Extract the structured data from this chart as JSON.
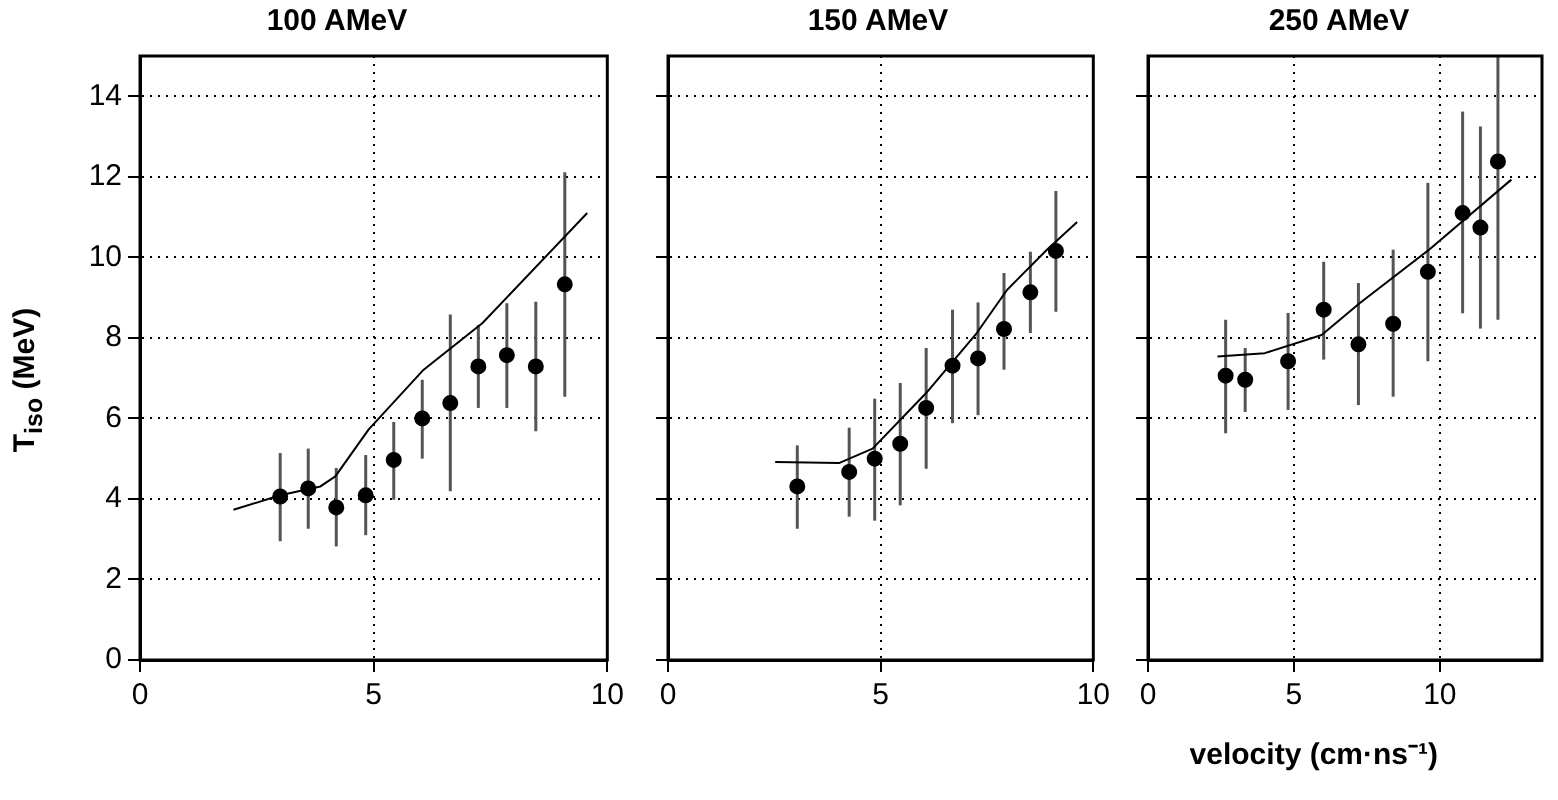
{
  "chart_data": [
    {
      "type": "scatter",
      "title": "100 AMeV",
      "ylabel": "T$_{iso}$ (MeV)",
      "xlim": [
        0,
        10
      ],
      "xticks": [
        0,
        5,
        10
      ],
      "ylim": [
        0,
        15
      ],
      "yticks": [
        0,
        2,
        4,
        6,
        8,
        10,
        12,
        14
      ],
      "grid": true,
      "series": [
        {
          "type": "scatter",
          "color": "#000000",
          "marker": "circle",
          "x": [
            3.0,
            3.6,
            4.2,
            4.83,
            5.43,
            6.04,
            6.64,
            7.24,
            7.85,
            8.47,
            9.09
          ],
          "values": [
            4.06,
            4.26,
            3.79,
            4.09,
            4.97,
            6.0,
            6.38,
            7.29,
            7.57,
            7.29,
            9.33
          ],
          "errors": [
            [
              2.95,
              5.14
            ],
            [
              3.26,
              5.25
            ],
            [
              2.82,
              4.77
            ],
            [
              3.1,
              5.09
            ],
            [
              3.98,
              5.91
            ],
            [
              5.0,
              6.96
            ],
            [
              4.19,
              8.58
            ],
            [
              6.26,
              8.32
            ],
            [
              6.26,
              8.86
            ],
            [
              5.68,
              8.9
            ],
            [
              6.54,
              12.11
            ]
          ]
        },
        {
          "type": "line",
          "color": "#000000",
          "marker": "none",
          "x": [
            2.0,
            3.0,
            3.86,
            4.18,
            4.89,
            6.07,
            7.33,
            9.57
          ],
          "values": [
            3.73,
            4.09,
            4.31,
            4.56,
            5.72,
            7.21,
            8.37,
            11.1
          ]
        }
      ]
    },
    {
      "type": "scatter",
      "title": "150 AMeV",
      "xlim": [
        0,
        10
      ],
      "xticks": [
        0,
        5,
        10
      ],
      "ylim": [
        0,
        15
      ],
      "yticks": [
        0,
        2,
        4,
        6,
        8,
        10,
        12,
        14
      ],
      "grid": true,
      "tick_labels": "x",
      "series": [
        {
          "type": "scatter",
          "color": "#000000",
          "marker": "circle",
          "x": [
            3.04,
            4.26,
            4.86,
            5.46,
            6.07,
            6.69,
            7.29,
            7.9,
            8.52,
            9.12
          ],
          "values": [
            4.31,
            4.67,
            5.0,
            5.37,
            6.26,
            7.31,
            7.49,
            8.22,
            9.13,
            10.16
          ],
          "errors": [
            [
              3.26,
              5.33
            ],
            [
              3.56,
              5.77
            ],
            [
              3.46,
              6.49
            ],
            [
              3.84,
              6.88
            ],
            [
              4.75,
              7.75
            ],
            [
              5.88,
              8.7
            ],
            [
              6.08,
              8.88
            ],
            [
              7.21,
              9.61
            ],
            [
              8.12,
              10.14
            ],
            [
              8.65,
              11.65
            ]
          ]
        },
        {
          "type": "line",
          "color": "#000000",
          "marker": "none",
          "x": [
            2.52,
            4.02,
            4.81,
            6.07,
            7.26,
            7.97,
            8.91,
            9.62
          ],
          "values": [
            4.92,
            4.89,
            5.25,
            6.63,
            8.12,
            9.19,
            10.19,
            10.88
          ]
        }
      ]
    },
    {
      "type": "scatter",
      "title": "250 AMeV",
      "xlabel": "velocity (cm·ns⁻¹)",
      "xlim": [
        0,
        13.5
      ],
      "xticks": [
        0,
        5,
        10
      ],
      "ylim": [
        0,
        15
      ],
      "yticks": [
        0,
        2,
        4,
        6,
        8,
        10,
        12,
        14
      ],
      "grid": true,
      "tick_labels": "x",
      "series": [
        {
          "type": "scatter",
          "color": "#000000",
          "marker": "circle",
          "x": [
            2.66,
            3.33,
            4.8,
            6.02,
            7.21,
            8.4,
            9.59,
            10.78,
            11.39,
            11.99
          ],
          "values": [
            7.06,
            6.96,
            7.42,
            8.7,
            7.84,
            8.35,
            9.64,
            11.1,
            10.74,
            12.38
          ],
          "errors": [
            [
              5.63,
              8.45
            ],
            [
              6.16,
              7.75
            ],
            [
              6.21,
              8.62
            ],
            [
              7.46,
              9.89
            ],
            [
              6.33,
              9.36
            ],
            [
              6.54,
              10.19
            ],
            [
              7.42,
              11.85
            ],
            [
              8.61,
              13.62
            ],
            [
              8.23,
              13.25
            ],
            [
              8.45,
              15
            ]
          ]
        },
        {
          "type": "line",
          "color": "#000000",
          "marker": "none",
          "x": [
            2.38,
            4.0,
            5.95,
            7.25,
            9.63,
            12.45
          ],
          "values": [
            7.54,
            7.62,
            8.07,
            8.86,
            10.19,
            11.93
          ]
        }
      ]
    }
  ]
}
